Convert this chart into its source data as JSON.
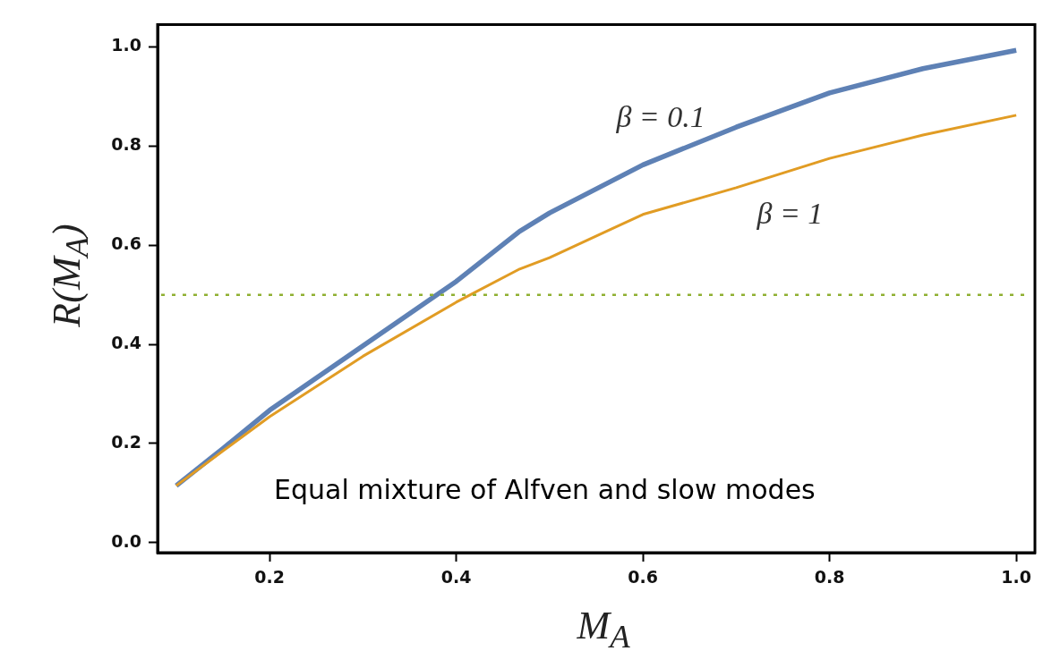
{
  "chart_data": {
    "type": "line",
    "xlabel": "M$_{A}$",
    "ylabel": "R(M$_{A}$)",
    "x": [
      0.1,
      0.15,
      0.2,
      0.3,
      0.4,
      0.468,
      0.5,
      0.6,
      0.7,
      0.8,
      0.9,
      1.0
    ],
    "series": [
      {
        "name": "β = 0.1",
        "color": "#5e81b5",
        "values": [
          0.115,
          0.19,
          0.267,
          0.397,
          0.527,
          0.628,
          0.665,
          0.762,
          0.838,
          0.907,
          0.956,
          0.993
        ]
      },
      {
        "name": "β = 1",
        "color": "#e19c24",
        "values": [
          0.115,
          0.185,
          0.254,
          0.376,
          0.485,
          0.552,
          0.575,
          0.662,
          0.716,
          0.775,
          0.822,
          0.862
        ]
      }
    ],
    "xlim": [
      0.08,
      1.02
    ],
    "ylim": [
      -0.02,
      1.045
    ],
    "xticks": [
      0.2,
      0.4,
      0.6,
      0.8,
      {
        "value": 1,
        "label": "1.0"
      }
    ],
    "yticks": [
      {
        "value": 0,
        "label": "0.0"
      },
      0.2,
      0.4,
      0.6,
      0.8,
      {
        "value": 1,
        "label": "1.0"
      }
    ],
    "ref_lines": [
      {
        "axis": "y",
        "value": 0.5,
        "color": "#8fb032",
        "line_style": "dotted"
      }
    ],
    "annotations": [
      "Equal mixture of Alfven and slow modes"
    ],
    "grid": false,
    "legend": false,
    "marker": "none",
    "line_style": "solid"
  }
}
